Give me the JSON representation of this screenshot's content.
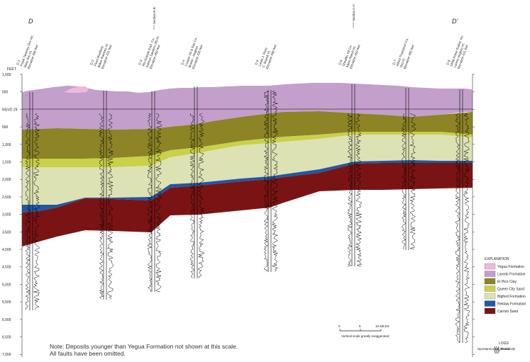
{
  "section": {
    "left_end": "D",
    "right_end": "D'",
    "depth_unit": "FEET",
    "datum_label": "NGVD 29",
    "depth_ticks": [
      "1,000",
      "500",
      "",
      "500",
      "1,000",
      "1,500",
      "2,000",
      "2,500",
      "3,000",
      "3,500",
      "4,000",
      "4,500",
      "5,000",
      "5,500",
      "6,000",
      "6,500",
      "7,000"
    ]
  },
  "wells": [
    {
      "id": "D-1",
      "lines": [
        "D-1",
        "Frank Twomey Dev Inc.",
        "Mary Ann #1",
        "Elevation 486 feet"
      ]
    },
    {
      "id": "D-2",
      "lines": [
        "D-2",
        "Floyd Bradbury",
        "Baker Ramsey #1",
        "Elevation 431 feet"
      ]
    },
    {
      "id": "D-3",
      "lines": [
        "D-3",
        "Rio Grande Expl. Co.",
        "Salmon Sanders (Ill) #1",
        "Elevation 450 feet"
      ]
    },
    {
      "id": "D-4",
      "lines": [
        "D-4",
        "Cooper Oil & Gas Co.",
        "Brown - Hughes",
        "Elevation 426 feet"
      ]
    },
    {
      "id": "D-5",
      "lines": [
        "D-5",
        "Lewis J. Ross",
        "C. Brandt #1",
        "Elevation 498 feet"
      ]
    },
    {
      "id": "D-6",
      "lines": [
        "D-6",
        "Sheaffer Oil Co.",
        "Aiken Ranch #1",
        "Elevation 450 feet"
      ]
    },
    {
      "id": "D-7",
      "lines": [
        "D-7",
        "Alfred Thompson Co.",
        "Ord #1",
        "Elevation 465 feet"
      ]
    },
    {
      "id": "D-8",
      "lines": [
        "D-8",
        "Delta Prime Explor. Inc.",
        "Lennis Hughes #1",
        "Elevation 431 feet"
      ]
    }
  ],
  "section_labels": [
    {
      "text": "Section B-B'"
    },
    {
      "text": "Section A-A'"
    }
  ],
  "legend": {
    "title": "EXPLANATION",
    "items": [
      {
        "label": "Yegua Formation",
        "color": "#f2b8d8"
      },
      {
        "label": "Laredo Formation",
        "color": "#c39fcc"
      },
      {
        "label": "El Pico Clay",
        "color": "#8c8425"
      },
      {
        "label": "Queen City Sand",
        "color": "#c9d04a"
      },
      {
        "label": "Bigford Formation",
        "color": "#dde2b4"
      },
      {
        "label": "Reklaw Formation",
        "color": "#2058a6"
      },
      {
        "label": "Carrizo Sand",
        "color": "#7a1414"
      }
    ],
    "logs_title": "LOGS",
    "log_left": "Spontaneous potential",
    "log_right": "Resistivity"
  },
  "scale": {
    "ticks": [
      "0",
      "5",
      "10 MILES"
    ],
    "caption": "Vertical scale greatly exaggerated"
  },
  "notes": [
    "Note: Deposits younger than Yegua Formation not shown at this scale.",
    "All faults have been omitted."
  ]
}
